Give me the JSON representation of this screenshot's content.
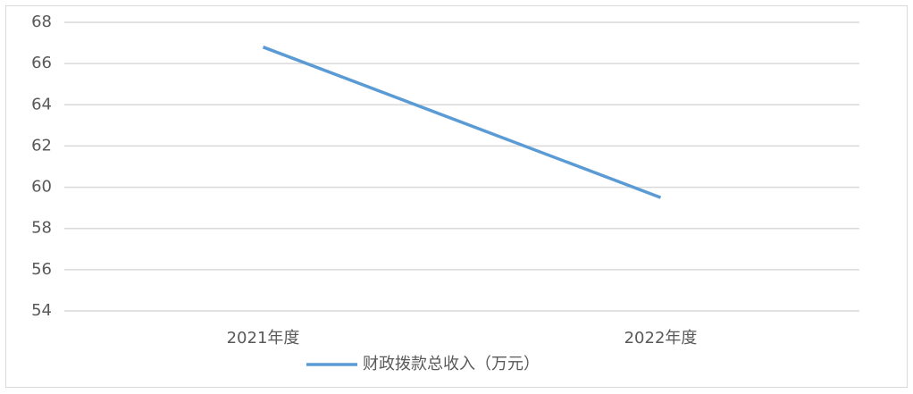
{
  "chart_data": {
    "type": "line",
    "categories": [
      "2021年度",
      "2022年度"
    ],
    "series": [
      {
        "name": "财政拨款总收入（万元）",
        "color": "#5b9bd5",
        "values": [
          66.8,
          59.5
        ]
      }
    ],
    "ylim": [
      54,
      68
    ],
    "yticks": [
      54,
      56,
      58,
      60,
      62,
      64,
      66,
      68
    ],
    "grid": true,
    "legend": "bottom"
  }
}
